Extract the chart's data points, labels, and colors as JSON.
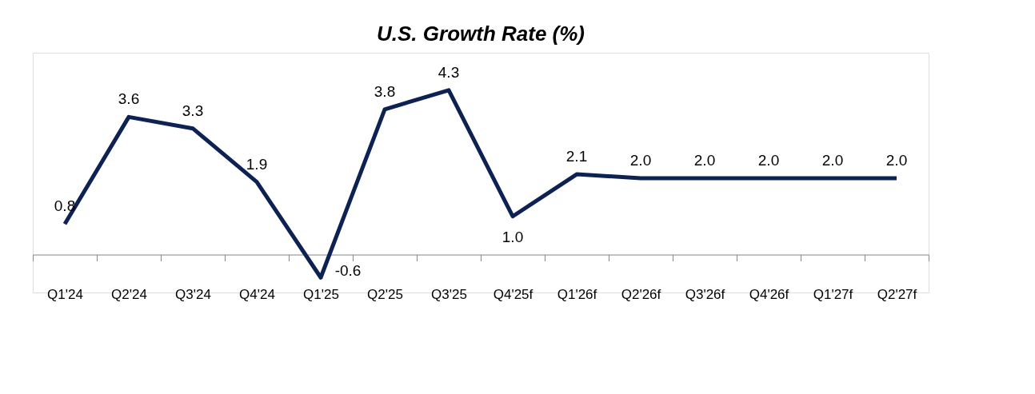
{
  "chart_data": {
    "type": "line",
    "title": "U.S. Growth Rate (%)",
    "categories": [
      "Q1'24",
      "Q2'24",
      "Q3'24",
      "Q4'24",
      "Q1'25",
      "Q2'25",
      "Q3'25",
      "Q4'25f",
      "Q1'26f",
      "Q2'26f",
      "Q3'26f",
      "Q4'26f",
      "Q1'27f",
      "Q2'27f"
    ],
    "series": [
      {
        "color": "#0c2257",
        "values": [
          0.8,
          3.6,
          3.3,
          1.9,
          -0.6,
          3.8,
          4.3,
          1.0,
          2.1,
          2.0,
          2.0,
          2.0,
          2.0,
          2.0
        ],
        "value_labels": [
          "0.8",
          "3.6",
          "3.3",
          "1.9",
          "-0.6",
          "3.8",
          "4.3",
          "1.0",
          "2.1",
          "2.0",
          "2.0",
          "2.0",
          "2.0",
          "2.0"
        ]
      }
    ],
    "grid": false,
    "marker": "none",
    "line_style": "solid"
  }
}
